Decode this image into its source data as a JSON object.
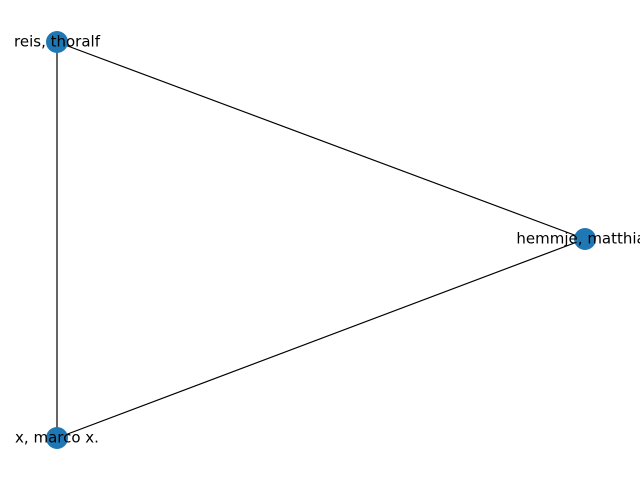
{
  "colors": {
    "node_fill": "#1f77b4",
    "edge": "#000000",
    "label": "#000000",
    "background": "#ffffff"
  },
  "nodes": [
    {
      "id": "reis",
      "label": "reis, thoralf"
    },
    {
      "id": "hemmje",
      "label": "hemmje, matthias"
    },
    {
      "id": "x",
      "label": "x, marco x."
    }
  ],
  "edges": [
    {
      "source": "reis",
      "target": "hemmje"
    },
    {
      "source": "reis",
      "target": "x"
    },
    {
      "source": "hemmje",
      "target": "x"
    }
  ]
}
